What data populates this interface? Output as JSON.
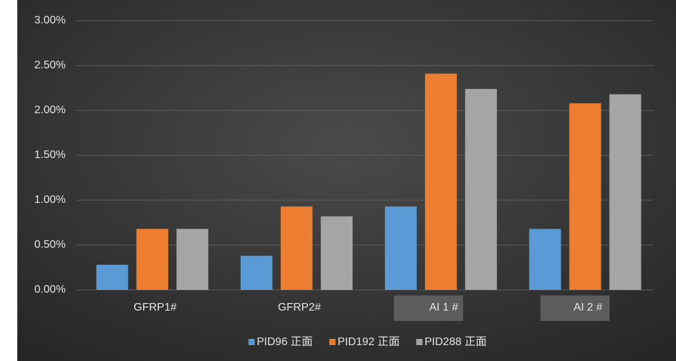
{
  "chart_data": {
    "type": "bar",
    "categories": [
      "GFRP1#",
      "GFRP2#",
      "AI 1 #",
      "AI 2 #"
    ],
    "series": [
      {
        "name": "PID96 正面",
        "color": "#5b9bd5",
        "values": [
          0.28,
          0.38,
          0.93,
          0.68
        ]
      },
      {
        "name": "PID192 正面",
        "color": "#ed7d31",
        "values": [
          0.68,
          0.93,
          2.41,
          2.08
        ]
      },
      {
        "name": "PID288 正面",
        "color": "#a5a5a5",
        "values": [
          0.68,
          0.82,
          2.24,
          2.18
        ]
      }
    ],
    "ylim": [
      0,
      3
    ],
    "yticks": [
      {
        "value": 0,
        "label": "0.00%"
      },
      {
        "value": 0.5,
        "label": "0.50%"
      },
      {
        "value": 1,
        "label": "1.00%"
      },
      {
        "value": 1.5,
        "label": "1.50%"
      },
      {
        "value": 2,
        "label": "2.00%"
      },
      {
        "value": 2.5,
        "label": "2.50%"
      },
      {
        "value": 3,
        "label": "3.00%"
      }
    ],
    "grid": true,
    "legend": "bottom"
  }
}
